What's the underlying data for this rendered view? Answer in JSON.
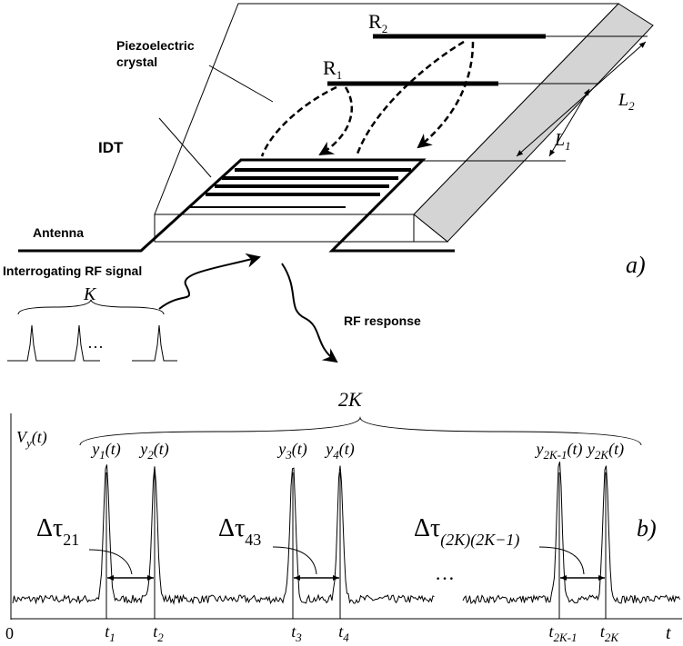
{
  "panel_a": {
    "label": "a)",
    "crystal_label": [
      "Piezoelectric",
      "crystal"
    ],
    "idt_label": "IDT",
    "antenna_label": "Antenna",
    "interrogating_label": "Interrogating RF signal",
    "response_label": "RF response",
    "pulse_count": "K",
    "ellipsis": "···",
    "reflectors": [
      {
        "base": "R",
        "sub": "1"
      },
      {
        "base": "R",
        "sub": "2"
      }
    ],
    "distances": [
      {
        "base": "L",
        "sub": "1"
      },
      {
        "base": "L",
        "sub": "2"
      }
    ]
  },
  "panel_b": {
    "label": "b)",
    "group_count": "2K",
    "y_axis": {
      "base": "V",
      "sub": "y",
      "suffix": "(t)"
    },
    "origin": "0",
    "x_axis": "t",
    "ellipsis": "…",
    "signals": [
      {
        "base": "y",
        "sub": "1",
        "suffix": "(t)"
      },
      {
        "base": "y",
        "sub": "2",
        "suffix": "(t)"
      },
      {
        "base": "y",
        "sub": "3",
        "suffix": "(t)"
      },
      {
        "base": "y",
        "sub": "4",
        "suffix": "(t)"
      },
      {
        "base": "y",
        "sub": "2K-1",
        "suffix": "(t)"
      },
      {
        "base": "y",
        "sub": "2K",
        "suffix": "(t)"
      }
    ],
    "times": [
      {
        "base": "t",
        "sub": "1"
      },
      {
        "base": "t",
        "sub": "2"
      },
      {
        "base": "t",
        "sub": "3"
      },
      {
        "base": "t",
        "sub": "4"
      },
      {
        "base": "t",
        "sub": "2K-1"
      },
      {
        "base": "t",
        "sub": "2K"
      }
    ],
    "delays": [
      {
        "base": "Δτ",
        "sub": "21"
      },
      {
        "base": "Δτ",
        "sub": "43"
      },
      {
        "base": "Δτ",
        "sub": "(2K)(2K−1)"
      }
    ]
  }
}
